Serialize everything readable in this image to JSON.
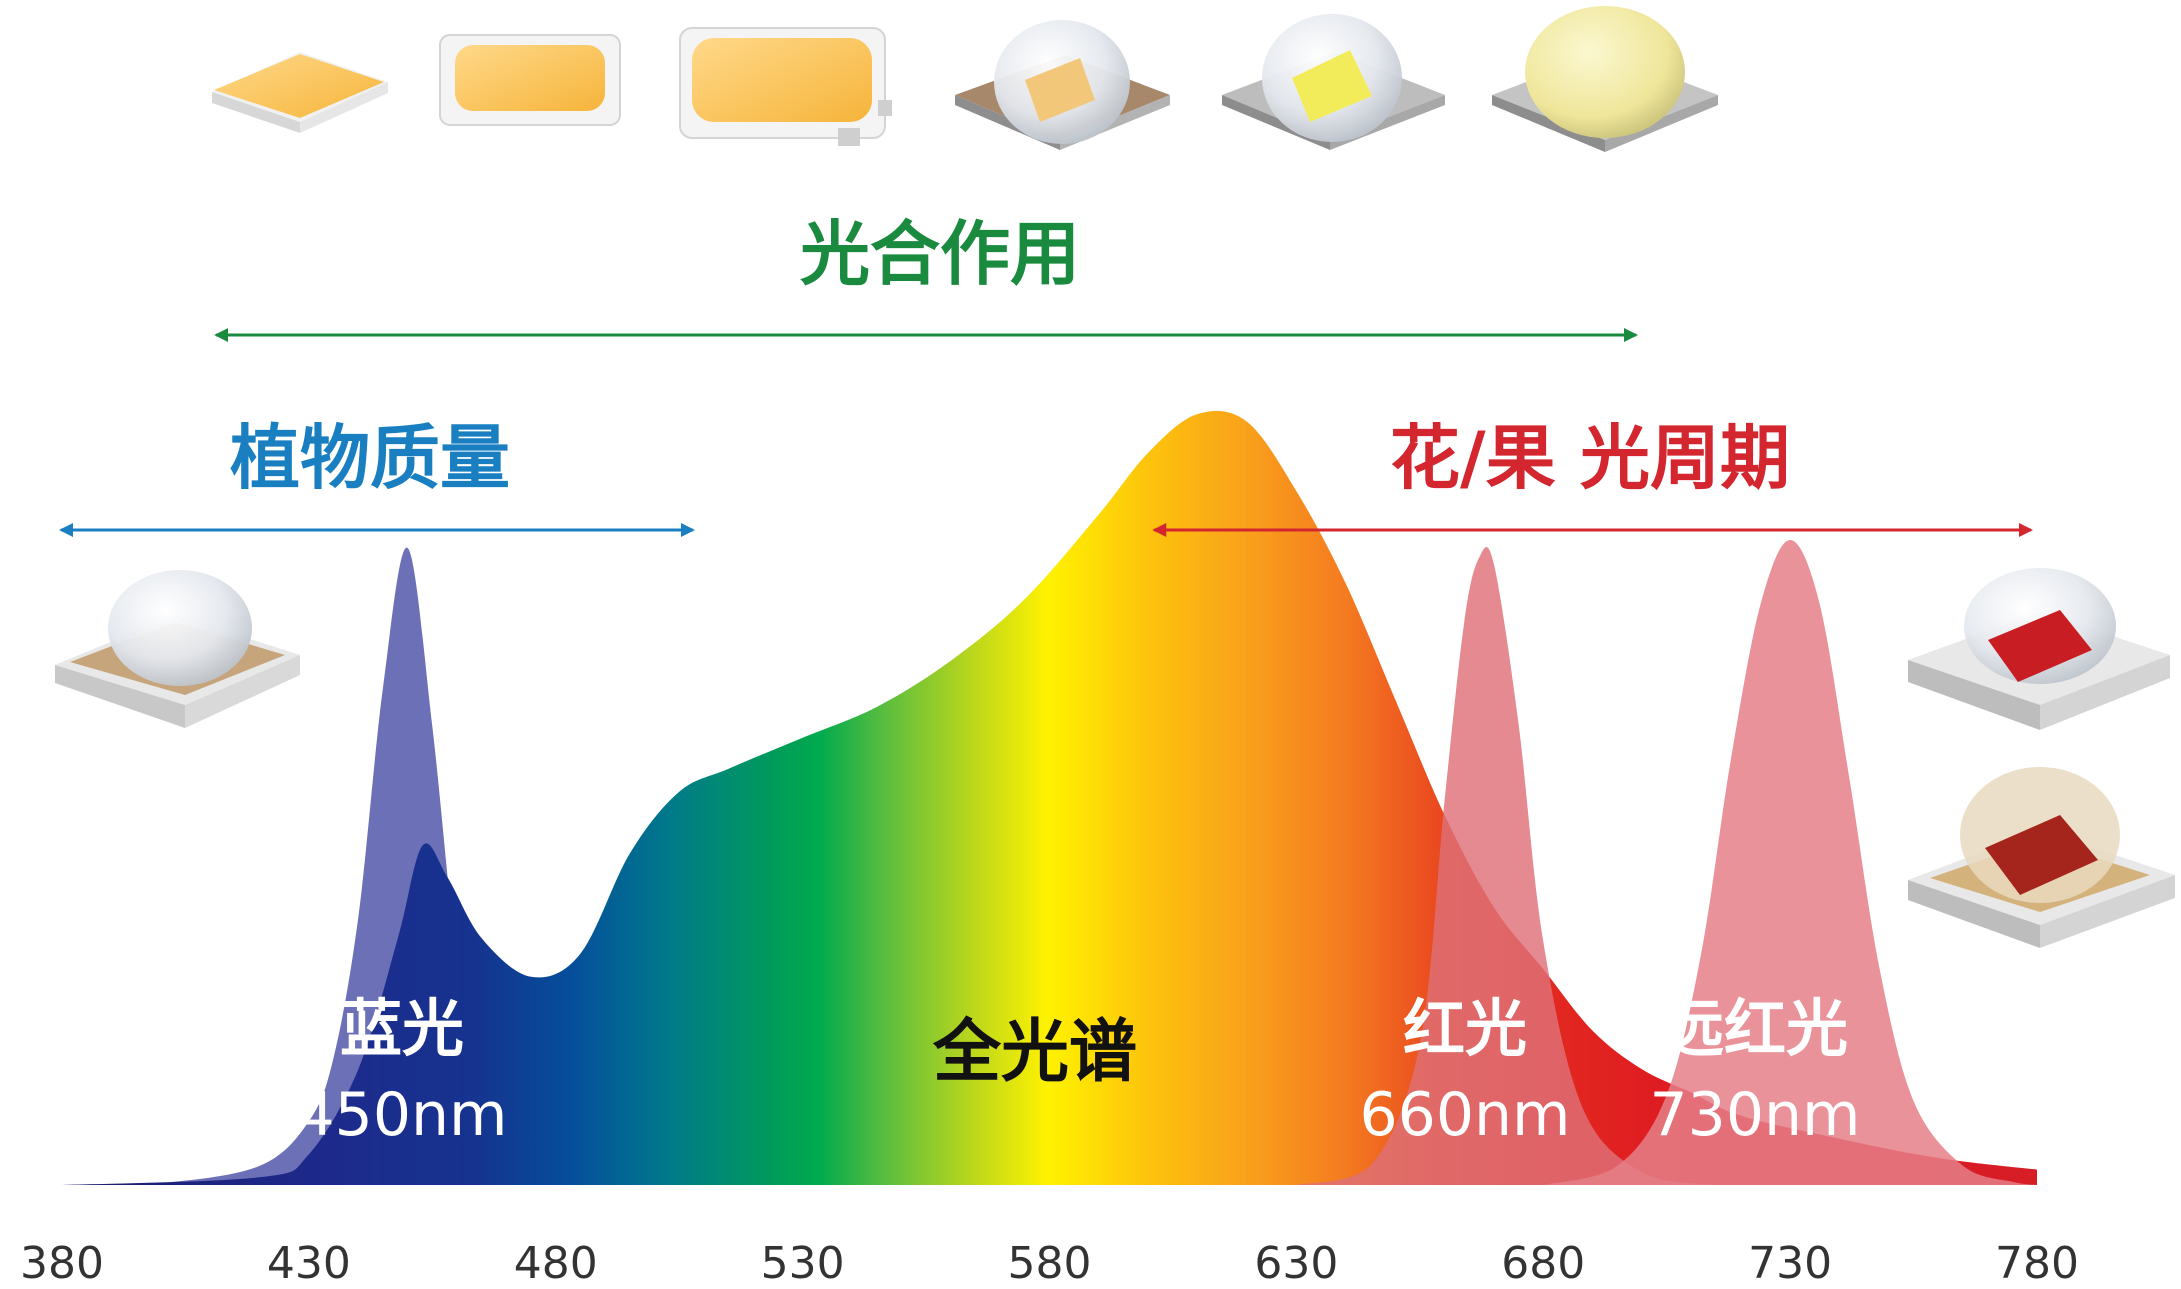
{
  "chart_data": {
    "type": "area",
    "xlabel": "",
    "ylabel": "",
    "xlim": [
      380,
      780
    ],
    "ylim": [
      0,
      1.0
    ],
    "x_ticks": [
      "380",
      "430",
      "480",
      "530",
      "580",
      "630",
      "680",
      "730",
      "780"
    ],
    "grid": false,
    "series": [
      {
        "label_line1": "蓝光",
        "label_line2": "450nm",
        "color": "#6c70b6",
        "x": [
          380,
          400,
          420,
          430,
          435,
          440,
          445,
          450,
          455,
          460,
          465,
          470,
          480,
          500
        ],
        "y": [
          0,
          0.003,
          0.03,
          0.1,
          0.2,
          0.42,
          0.78,
          1.0,
          0.72,
          0.35,
          0.14,
          0.05,
          0.01,
          0
        ]
      },
      {
        "label": "全光谱",
        "color": "#00a650",
        "x": [
          380,
          420,
          430,
          440,
          448,
          453,
          458,
          465,
          475,
          485,
          495,
          505,
          515,
          530,
          545,
          560,
          575,
          590,
          600,
          610,
          620,
          630,
          640,
          650,
          660,
          670,
          680,
          690,
          700,
          710,
          720,
          740,
          760,
          780
        ],
        "y": [
          0,
          0.01,
          0.04,
          0.15,
          0.32,
          0.44,
          0.4,
          0.32,
          0.27,
          0.3,
          0.43,
          0.51,
          0.54,
          0.58,
          0.62,
          0.68,
          0.76,
          0.87,
          0.95,
          1.0,
          0.99,
          0.9,
          0.78,
          0.63,
          0.48,
          0.36,
          0.28,
          0.2,
          0.15,
          0.12,
          0.09,
          0.06,
          0.035,
          0.02
        ]
      },
      {
        "label_line1": "红光",
        "label_line2": "660nm",
        "color": "#de7077",
        "x": [
          630,
          645,
          655,
          660,
          664,
          667,
          670,
          675,
          680,
          688,
          700,
          715
        ],
        "y": [
          0,
          0.03,
          0.22,
          0.6,
          0.88,
          0.98,
          0.97,
          0.72,
          0.38,
          0.12,
          0.02,
          0
        ]
      },
      {
        "label_line1": "远红光",
        "label_line2": "730nm",
        "color": "#e57f87",
        "x": [
          680,
          695,
          705,
          712,
          718,
          724,
          730,
          736,
          742,
          748,
          755,
          765,
          775,
          785
        ],
        "y": [
          0,
          0.03,
          0.14,
          0.36,
          0.66,
          0.9,
          1.0,
          0.9,
          0.63,
          0.34,
          0.13,
          0.03,
          0.005,
          0
        ]
      }
    ],
    "annotations": [
      {
        "text": "光合作用",
        "range": [
          410,
          700
        ],
        "color": "#1a8a3e"
      },
      {
        "text": "植物质量",
        "range": [
          380,
          509
        ],
        "color": "#1a7fc1"
      },
      {
        "text": "花/果 光周期",
        "range": [
          600,
          780
        ],
        "color": "#d3262f"
      }
    ]
  }
}
